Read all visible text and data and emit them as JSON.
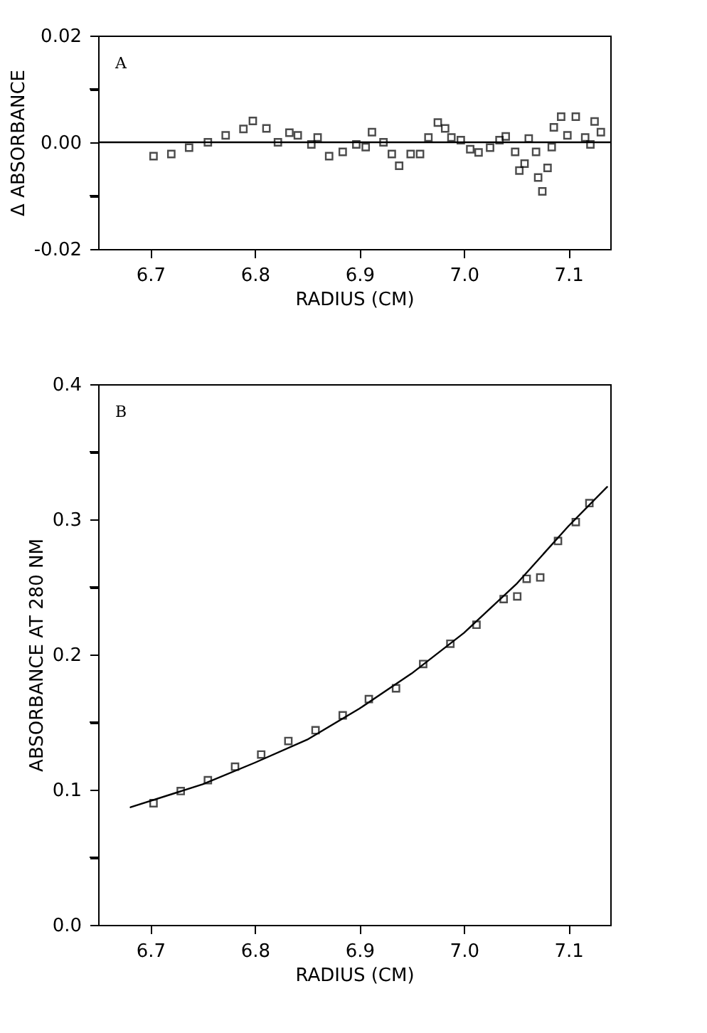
{
  "chart_data": [
    {
      "type": "scatter",
      "xlabel": "RADIUS (CM)",
      "ylabel": "Δ ABSORBANCE",
      "annotations": [
        "A"
      ],
      "marker": "square",
      "color": "#000000",
      "x": [
        6.703,
        6.72,
        6.737,
        6.755,
        6.772,
        6.789,
        6.798,
        6.811,
        6.822,
        6.833,
        6.841,
        6.854,
        6.86,
        6.871,
        6.884,
        6.897,
        6.906,
        6.912,
        6.923,
        6.931,
        6.938,
        6.949,
        6.958,
        6.966,
        6.975,
        6.982,
        6.988,
        6.997,
        7.006,
        7.014,
        7.025,
        7.034,
        7.04,
        7.049,
        7.053,
        7.058,
        7.062,
        7.069,
        7.071,
        7.075,
        7.08,
        7.084,
        7.086,
        7.093,
        7.099,
        7.107,
        7.116,
        7.121,
        7.125,
        7.131
      ],
      "values": [
        -0.0026,
        -0.0022,
        -0.001,
        0.0,
        0.0013,
        0.0025,
        0.004,
        0.0026,
        0.0,
        0.0018,
        0.0013,
        -0.0004,
        0.0009,
        -0.0026,
        -0.0018,
        -0.0004,
        -0.0009,
        0.0019,
        0.0,
        -0.0022,
        -0.0044,
        -0.0022,
        -0.0022,
        0.0009,
        0.0037,
        0.0026,
        0.0009,
        0.0004,
        -0.0013,
        -0.0019,
        -0.001,
        0.0004,
        0.0011,
        -0.0018,
        -0.0053,
        -0.004,
        0.0007,
        -0.0018,
        -0.0066,
        -0.0092,
        -0.0048,
        -0.0009,
        0.0028,
        0.0048,
        0.0013,
        0.0048,
        0.0009,
        -0.0004,
        0.0039,
        0.0019
      ],
      "xlim": [
        6.65,
        7.14
      ],
      "xticks": [
        6.7,
        6.8,
        6.9,
        {
          "value": 7.0,
          "label": "7.0"
        },
        7.1
      ],
      "ylim": [
        -0.02,
        0.02
      ],
      "yticks": [
        {
          "value": -0.02,
          "label": "-0.02"
        },
        {
          "value": -0.01,
          "label": null
        },
        {
          "value": 0,
          "label": "0.00"
        },
        {
          "value": 0.01,
          "label": null
        },
        {
          "value": 0.02,
          "label": "0.02"
        }
      ],
      "ref_lines": [
        {
          "axis": "y",
          "value": 0,
          "color": "#000000"
        }
      ]
    },
    {
      "type": "scatter",
      "xlabel": "RADIUS (CM)",
      "ylabel": "ABSORBANCE AT 280 NM",
      "annotations": [
        "B"
      ],
      "series": [
        {
          "type": "scatter",
          "marker": "square",
          "color": "#000000",
          "x": [
            6.703,
            6.729,
            6.755,
            6.781,
            6.806,
            6.832,
            6.858,
            6.884,
            6.909,
            6.935,
            6.961,
            6.987,
            7.012,
            7.038,
            7.051,
            7.06,
            7.073,
            7.09,
            7.107,
            7.12
          ],
          "values": [
            0.09,
            0.099,
            0.107,
            0.117,
            0.126,
            0.136,
            0.144,
            0.155,
            0.167,
            0.175,
            0.193,
            0.208,
            0.222,
            0.241,
            0.243,
            0.256,
            0.257,
            0.284,
            0.298,
            0.312
          ]
        },
        {
          "type": "line",
          "marker": "none",
          "line_style": "solid",
          "color": "#000000",
          "x": [
            6.681,
            6.75,
            6.8,
            6.85,
            6.9,
            6.95,
            7.0,
            7.05,
            7.1,
            7.137
          ],
          "values": [
            0.087,
            0.104,
            0.12,
            0.137,
            0.16,
            0.186,
            0.216,
            0.252,
            0.295,
            0.324
          ]
        }
      ],
      "xlim": [
        6.65,
        7.14
      ],
      "xticks": [
        6.7,
        6.8,
        6.9,
        {
          "value": 7.0,
          "label": "7.0"
        },
        7.1
      ],
      "ylim": [
        0,
        0.4
      ],
      "yticks": [
        {
          "value": 0,
          "label": "0.0"
        },
        {
          "value": 0.05,
          "label": null
        },
        0.1,
        {
          "value": 0.15,
          "label": null
        },
        0.2,
        {
          "value": 0.25,
          "label": null
        },
        0.3,
        {
          "value": 0.35,
          "label": null
        },
        0.4
      ]
    }
  ]
}
